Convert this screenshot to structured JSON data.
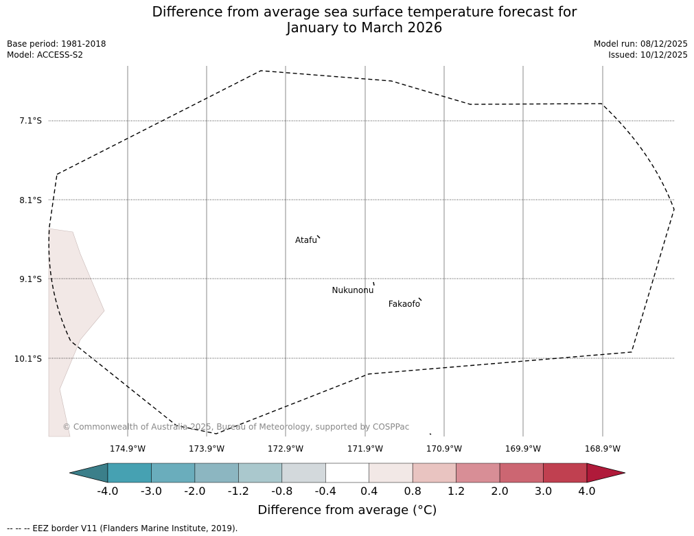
{
  "header": {
    "title_line1": "Difference from average sea surface temperature forecast for",
    "title_line2": "January to March 2026",
    "base_period": "Base period: 1981-2018",
    "model": "Model: ACCESS-S2",
    "model_run": "Model run: 08/12/2025",
    "issued": "Issued: 10/12/2025"
  },
  "map": {
    "latitude_labels": [
      "7.1°S",
      "8.1°S",
      "9.1°S",
      "10.1°S"
    ],
    "longitude_labels": [
      "174.9°W",
      "173.9°W",
      "172.9°W",
      "171.9°W",
      "170.9°W",
      "169.9°W",
      "168.9°W"
    ],
    "islands": [
      "Atafu",
      "Nukunonu",
      "Fakaofo"
    ],
    "copyright": "© Commonwealth of Australia 2025, Bureau of Meteorology, supported by COSPPac",
    "anomaly_fill_color": "#f2e8e6",
    "eez_border_color": "#000000"
  },
  "colorbar": {
    "ticks": [
      "-4.0",
      "-3.0",
      "-2.0",
      "-1.2",
      "-0.8",
      "-0.4",
      "0.4",
      "0.8",
      "1.2",
      "2.0",
      "3.0",
      "4.0"
    ],
    "colors": [
      "#3b7f8a",
      "#46a1b2",
      "#6aadbc",
      "#8cb6c1",
      "#aac8cd",
      "#d3d9dc",
      "#ffffff",
      "#f2e8e6",
      "#e9c4c1",
      "#d88e96",
      "#cc6672",
      "#c04050",
      "#b01a3a"
    ],
    "title": "Difference from average (°C)"
  },
  "footnote": "--  --  -- EEZ border V11 (Flanders Marine Institute, 2019)."
}
